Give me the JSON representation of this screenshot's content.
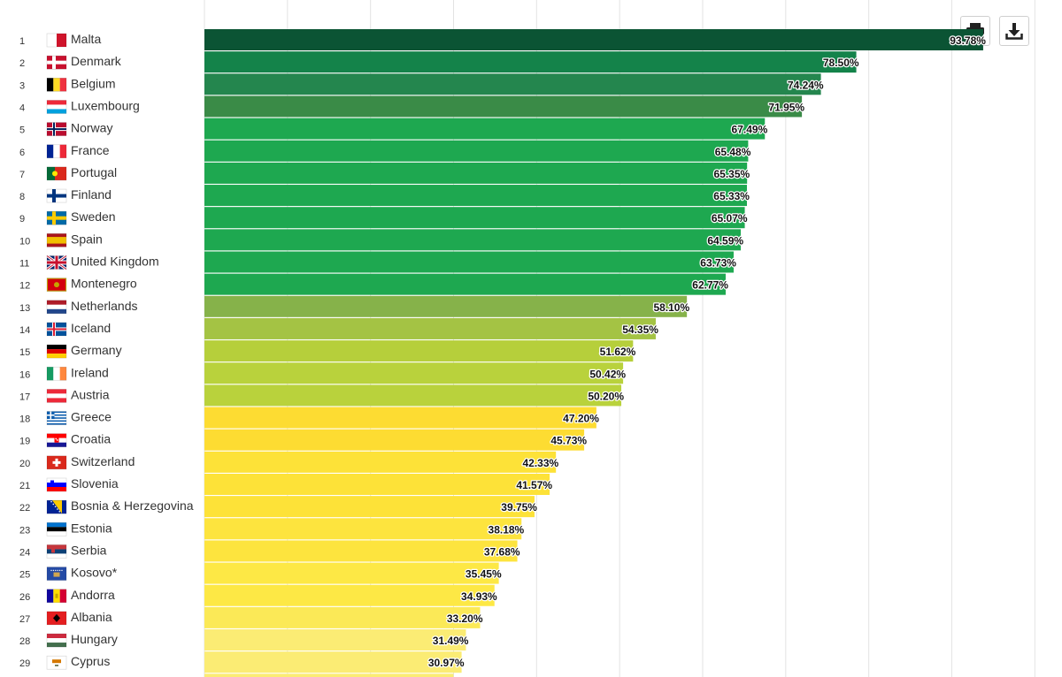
{
  "toolbar": {
    "print_icon": "print-icon",
    "download_icon": "download-icon"
  },
  "chart_data": {
    "type": "bar",
    "orientation": "horizontal",
    "title": "",
    "xlabel": "",
    "ylabel": "",
    "xlim": [
      0,
      100
    ],
    "value_suffix": "%",
    "grid": true,
    "categories": [
      "Malta",
      "Denmark",
      "Belgium",
      "Luxembourg",
      "Norway",
      "France",
      "Portugal",
      "Finland",
      "Sweden",
      "Spain",
      "United Kingdom",
      "Montenegro",
      "Netherlands",
      "Iceland",
      "Germany",
      "Ireland",
      "Austria",
      "Greece",
      "Croatia",
      "Switzerland",
      "Slovenia",
      "Bosnia & Herzegovina",
      "Estonia",
      "Serbia",
      "Kosovo*",
      "Andorra",
      "Albania",
      "Hungary",
      "Cyprus"
    ],
    "ranks": [
      1,
      2,
      3,
      4,
      5,
      6,
      7,
      8,
      9,
      10,
      11,
      12,
      13,
      14,
      15,
      16,
      17,
      18,
      19,
      20,
      21,
      22,
      23,
      24,
      25,
      26,
      27,
      28,
      29
    ],
    "values": [
      93.78,
      78.5,
      74.24,
      71.95,
      67.49,
      65.48,
      65.35,
      65.33,
      65.07,
      64.59,
      63.73,
      62.77,
      58.1,
      54.35,
      51.62,
      50.42,
      50.2,
      47.2,
      45.73,
      42.33,
      41.57,
      39.75,
      38.18,
      37.68,
      35.45,
      34.93,
      33.2,
      31.49,
      30.97
    ],
    "value_labels": [
      "93.78%",
      "78.50%",
      "74.24%",
      "71.95%",
      "67.49%",
      "65.48%",
      "65.35%",
      "65.33%",
      "65.07%",
      "64.59%",
      "63.73%",
      "62.77%",
      "58.10%",
      "54.35%",
      "51.62%",
      "50.42%",
      "50.20%",
      "47.20%",
      "45.73%",
      "42.33%",
      "41.57%",
      "39.75%",
      "38.18%",
      "37.68%",
      "35.45%",
      "34.93%",
      "33.20%",
      "31.49%",
      "30.97%"
    ],
    "colors": [
      "#0b5434",
      "#14834a",
      "#24864e",
      "#3a8b47",
      "#1ea850",
      "#1ea850",
      "#1ea850",
      "#1ea850",
      "#1ea850",
      "#1ea850",
      "#1ea850",
      "#1ea850",
      "#86b24a",
      "#a4c344",
      "#b6cf3b",
      "#b9d23c",
      "#b9d23c",
      "#fddc32",
      "#fddc32",
      "#fde238",
      "#fde238",
      "#fde238",
      "#fde43e",
      "#fde43e",
      "#fde845",
      "#fde845",
      "#fbe957",
      "#fbec74",
      "#fbec74"
    ],
    "flags": [
      "malta-flag",
      "denmark-flag",
      "belgium-flag",
      "luxembourg-flag",
      "norway-flag",
      "france-flag",
      "portugal-flag",
      "finland-flag",
      "sweden-flag",
      "spain-flag",
      "uk-flag",
      "montenegro-flag",
      "netherlands-flag",
      "iceland-flag",
      "germany-flag",
      "ireland-flag",
      "austria-flag",
      "greece-flag",
      "croatia-flag",
      "switzerland-flag",
      "slovenia-flag",
      "bosnia-flag",
      "estonia-flag",
      "serbia-flag",
      "kosovo-flag",
      "andorra-flag",
      "albania-flag",
      "hungary-flag",
      "cyprus-flag"
    ],
    "partial_next_bar": {
      "color": "#fbec74"
    }
  }
}
